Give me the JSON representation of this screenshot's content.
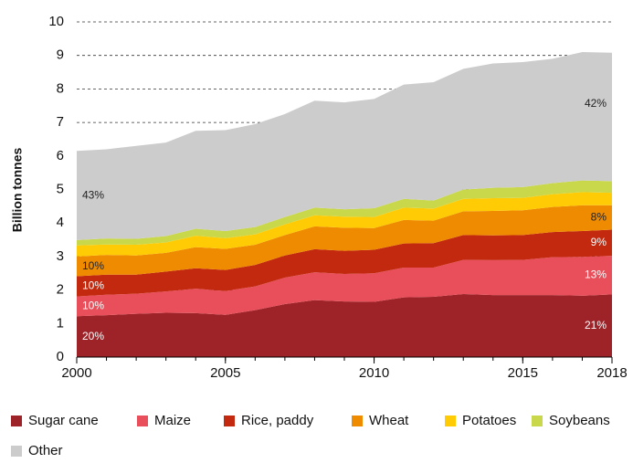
{
  "chart_data": {
    "type": "stacked_area",
    "y_axis_label": "Billion tonnes",
    "x": [
      2000,
      2001,
      2002,
      2003,
      2004,
      2005,
      2006,
      2007,
      2008,
      2009,
      2010,
      2011,
      2012,
      2013,
      2014,
      2015,
      2016,
      2017,
      2018
    ],
    "xlim": [
      2000,
      2018
    ],
    "xticks": [
      2000,
      2005,
      2010,
      2015,
      2018
    ],
    "ylim": [
      0,
      10
    ],
    "yticks": [
      0,
      1,
      2,
      3,
      4,
      5,
      6,
      7,
      8,
      9,
      10
    ],
    "grid": true,
    "legend": "bottom",
    "series": [
      {
        "name": "Sugar cane",
        "color": "#9e2329",
        "share_labels": [
          "20%",
          "21%"
        ],
        "values": [
          1.22,
          1.25,
          1.29,
          1.32,
          1.31,
          1.26,
          1.4,
          1.58,
          1.7,
          1.66,
          1.65,
          1.78,
          1.8,
          1.88,
          1.85,
          1.85,
          1.85,
          1.83,
          1.87
        ]
      },
      {
        "name": "Maize",
        "color": "#e84f5a",
        "share_labels": [
          "10%",
          "13%"
        ],
        "values": [
          0.59,
          0.61,
          0.6,
          0.64,
          0.73,
          0.71,
          0.71,
          0.79,
          0.83,
          0.82,
          0.85,
          0.89,
          0.87,
          1.02,
          1.04,
          1.05,
          1.13,
          1.16,
          1.15
        ]
      },
      {
        "name": "Rice, paddy",
        "color": "#c2290f",
        "share_labels": [
          "10%",
          "9%"
        ],
        "values": [
          0.6,
          0.6,
          0.57,
          0.59,
          0.61,
          0.63,
          0.64,
          0.66,
          0.69,
          0.69,
          0.7,
          0.72,
          0.73,
          0.74,
          0.74,
          0.74,
          0.75,
          0.77,
          0.78
        ]
      },
      {
        "name": "Wheat",
        "color": "#ef8b00",
        "share_labels": [
          "10%",
          "8%"
        ],
        "values": [
          0.59,
          0.59,
          0.57,
          0.56,
          0.63,
          0.63,
          0.6,
          0.61,
          0.68,
          0.69,
          0.65,
          0.7,
          0.67,
          0.71,
          0.73,
          0.74,
          0.75,
          0.77,
          0.73
        ]
      },
      {
        "name": "Potatoes",
        "color": "#ffcb05",
        "values": [
          0.33,
          0.31,
          0.32,
          0.31,
          0.34,
          0.32,
          0.31,
          0.32,
          0.33,
          0.33,
          0.33,
          0.37,
          0.36,
          0.37,
          0.38,
          0.37,
          0.38,
          0.39,
          0.37
        ]
      },
      {
        "name": "Soybeans",
        "color": "#c9d84b",
        "values": [
          0.16,
          0.18,
          0.18,
          0.19,
          0.21,
          0.21,
          0.22,
          0.22,
          0.23,
          0.22,
          0.26,
          0.26,
          0.24,
          0.28,
          0.31,
          0.32,
          0.33,
          0.35,
          0.35
        ]
      },
      {
        "name": "Other",
        "color": "#cccccc",
        "share_labels": [
          "43%",
          "42%"
        ],
        "values": [
          2.66,
          2.66,
          2.77,
          2.79,
          2.92,
          3.01,
          3.07,
          3.07,
          3.19,
          3.19,
          3.26,
          3.41,
          3.53,
          3.6,
          3.71,
          3.73,
          3.71,
          3.83,
          3.83
        ]
      }
    ]
  }
}
